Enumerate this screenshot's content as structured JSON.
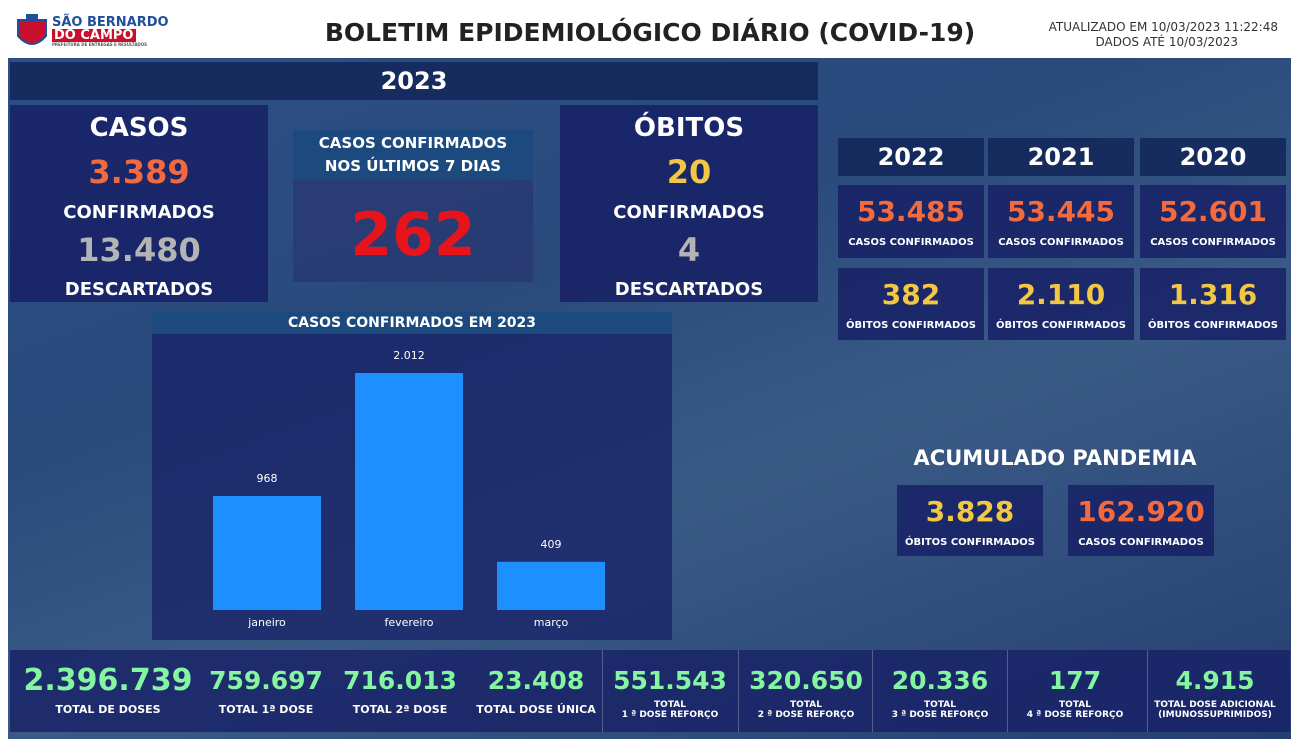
{
  "header": {
    "logo_line1": "SÃO BERNARDO",
    "logo_line2": "DO CAMPO",
    "logo_sub": "PREFEITURA DE ENTREGAS E RESULTADOS",
    "title": "BOLETIM EPIDEMIOLÓGICO DIÁRIO (COVID-19)",
    "updated": "ATUALIZADO EM 10/03/2023 11:22:48",
    "data_until": "DADOS ATÉ 10/03/2023"
  },
  "current": {
    "year": "2023",
    "cases": {
      "title": "CASOS",
      "confirmed": "3.389",
      "confirmed_label": "CONFIRMADOS",
      "discarded": "13.480",
      "discarded_label": "DESCARTADOS"
    },
    "last7": {
      "title_line1": "CASOS CONFIRMADOS",
      "title_line2": "NOS ÚLTIMOS 7 DIAS",
      "value": "262"
    },
    "deaths": {
      "title": "ÓBITOS",
      "confirmed": "20",
      "confirmed_label": "CONFIRMADOS",
      "discarded": "4",
      "discarded_label": "DESCARTADOS"
    }
  },
  "past_years": [
    {
      "year": "2022",
      "cases": "53.485",
      "cases_label": "CASOS CONFIRMADOS",
      "deaths": "382",
      "deaths_label": "ÓBITOS CONFIRMADOS"
    },
    {
      "year": "2021",
      "cases": "53.445",
      "cases_label": "CASOS CONFIRMADOS",
      "deaths": "2.110",
      "deaths_label": "ÓBITOS CONFIRMADOS"
    },
    {
      "year": "2020",
      "cases": "52.601",
      "cases_label": "CASOS CONFIRMADOS",
      "deaths": "1.316",
      "deaths_label": "ÓBITOS CONFIRMADOS"
    }
  ],
  "pandemic": {
    "title": "ACUMULADO PANDEMIA",
    "deaths": "3.828",
    "deaths_label": "ÓBITOS CONFIRMADOS",
    "cases": "162.920",
    "cases_label": "CASOS CONFIRMADOS"
  },
  "chart_data": {
    "type": "bar",
    "title": "CASOS CONFIRMADOS EM 2023",
    "categories": [
      "janeiro",
      "fevereiro",
      "março"
    ],
    "values": [
      968,
      2012,
      409
    ],
    "value_labels": [
      "968",
      "2.012",
      "409"
    ],
    "color": "#1e8fff"
  },
  "vaccines": [
    {
      "value": "2.396.739",
      "label": [
        "TOTAL DE DOSES"
      ]
    },
    {
      "value": "759.697",
      "label": [
        "TOTAL 1ª DOSE"
      ]
    },
    {
      "value": "716.013",
      "label": [
        "TOTAL 2ª DOSE"
      ]
    },
    {
      "value": "23.408",
      "label": [
        "TOTAL DOSE ÚNICA"
      ]
    },
    {
      "value": "551.543",
      "label": [
        "TOTAL",
        "1 ª DOSE REFORÇO"
      ]
    },
    {
      "value": "320.650",
      "label": [
        "TOTAL",
        "2 ª DOSE REFORÇO"
      ]
    },
    {
      "value": "20.336",
      "label": [
        "TOTAL",
        "3 ª DOSE REFORÇO"
      ]
    },
    {
      "value": "177",
      "label": [
        "TOTAL",
        "4 ª DOSE REFORÇO"
      ]
    },
    {
      "value": "4.915",
      "label": [
        "TOTAL DOSE ADICIONAL",
        "(IMUNOSSUPRIMIDOS)"
      ]
    }
  ]
}
